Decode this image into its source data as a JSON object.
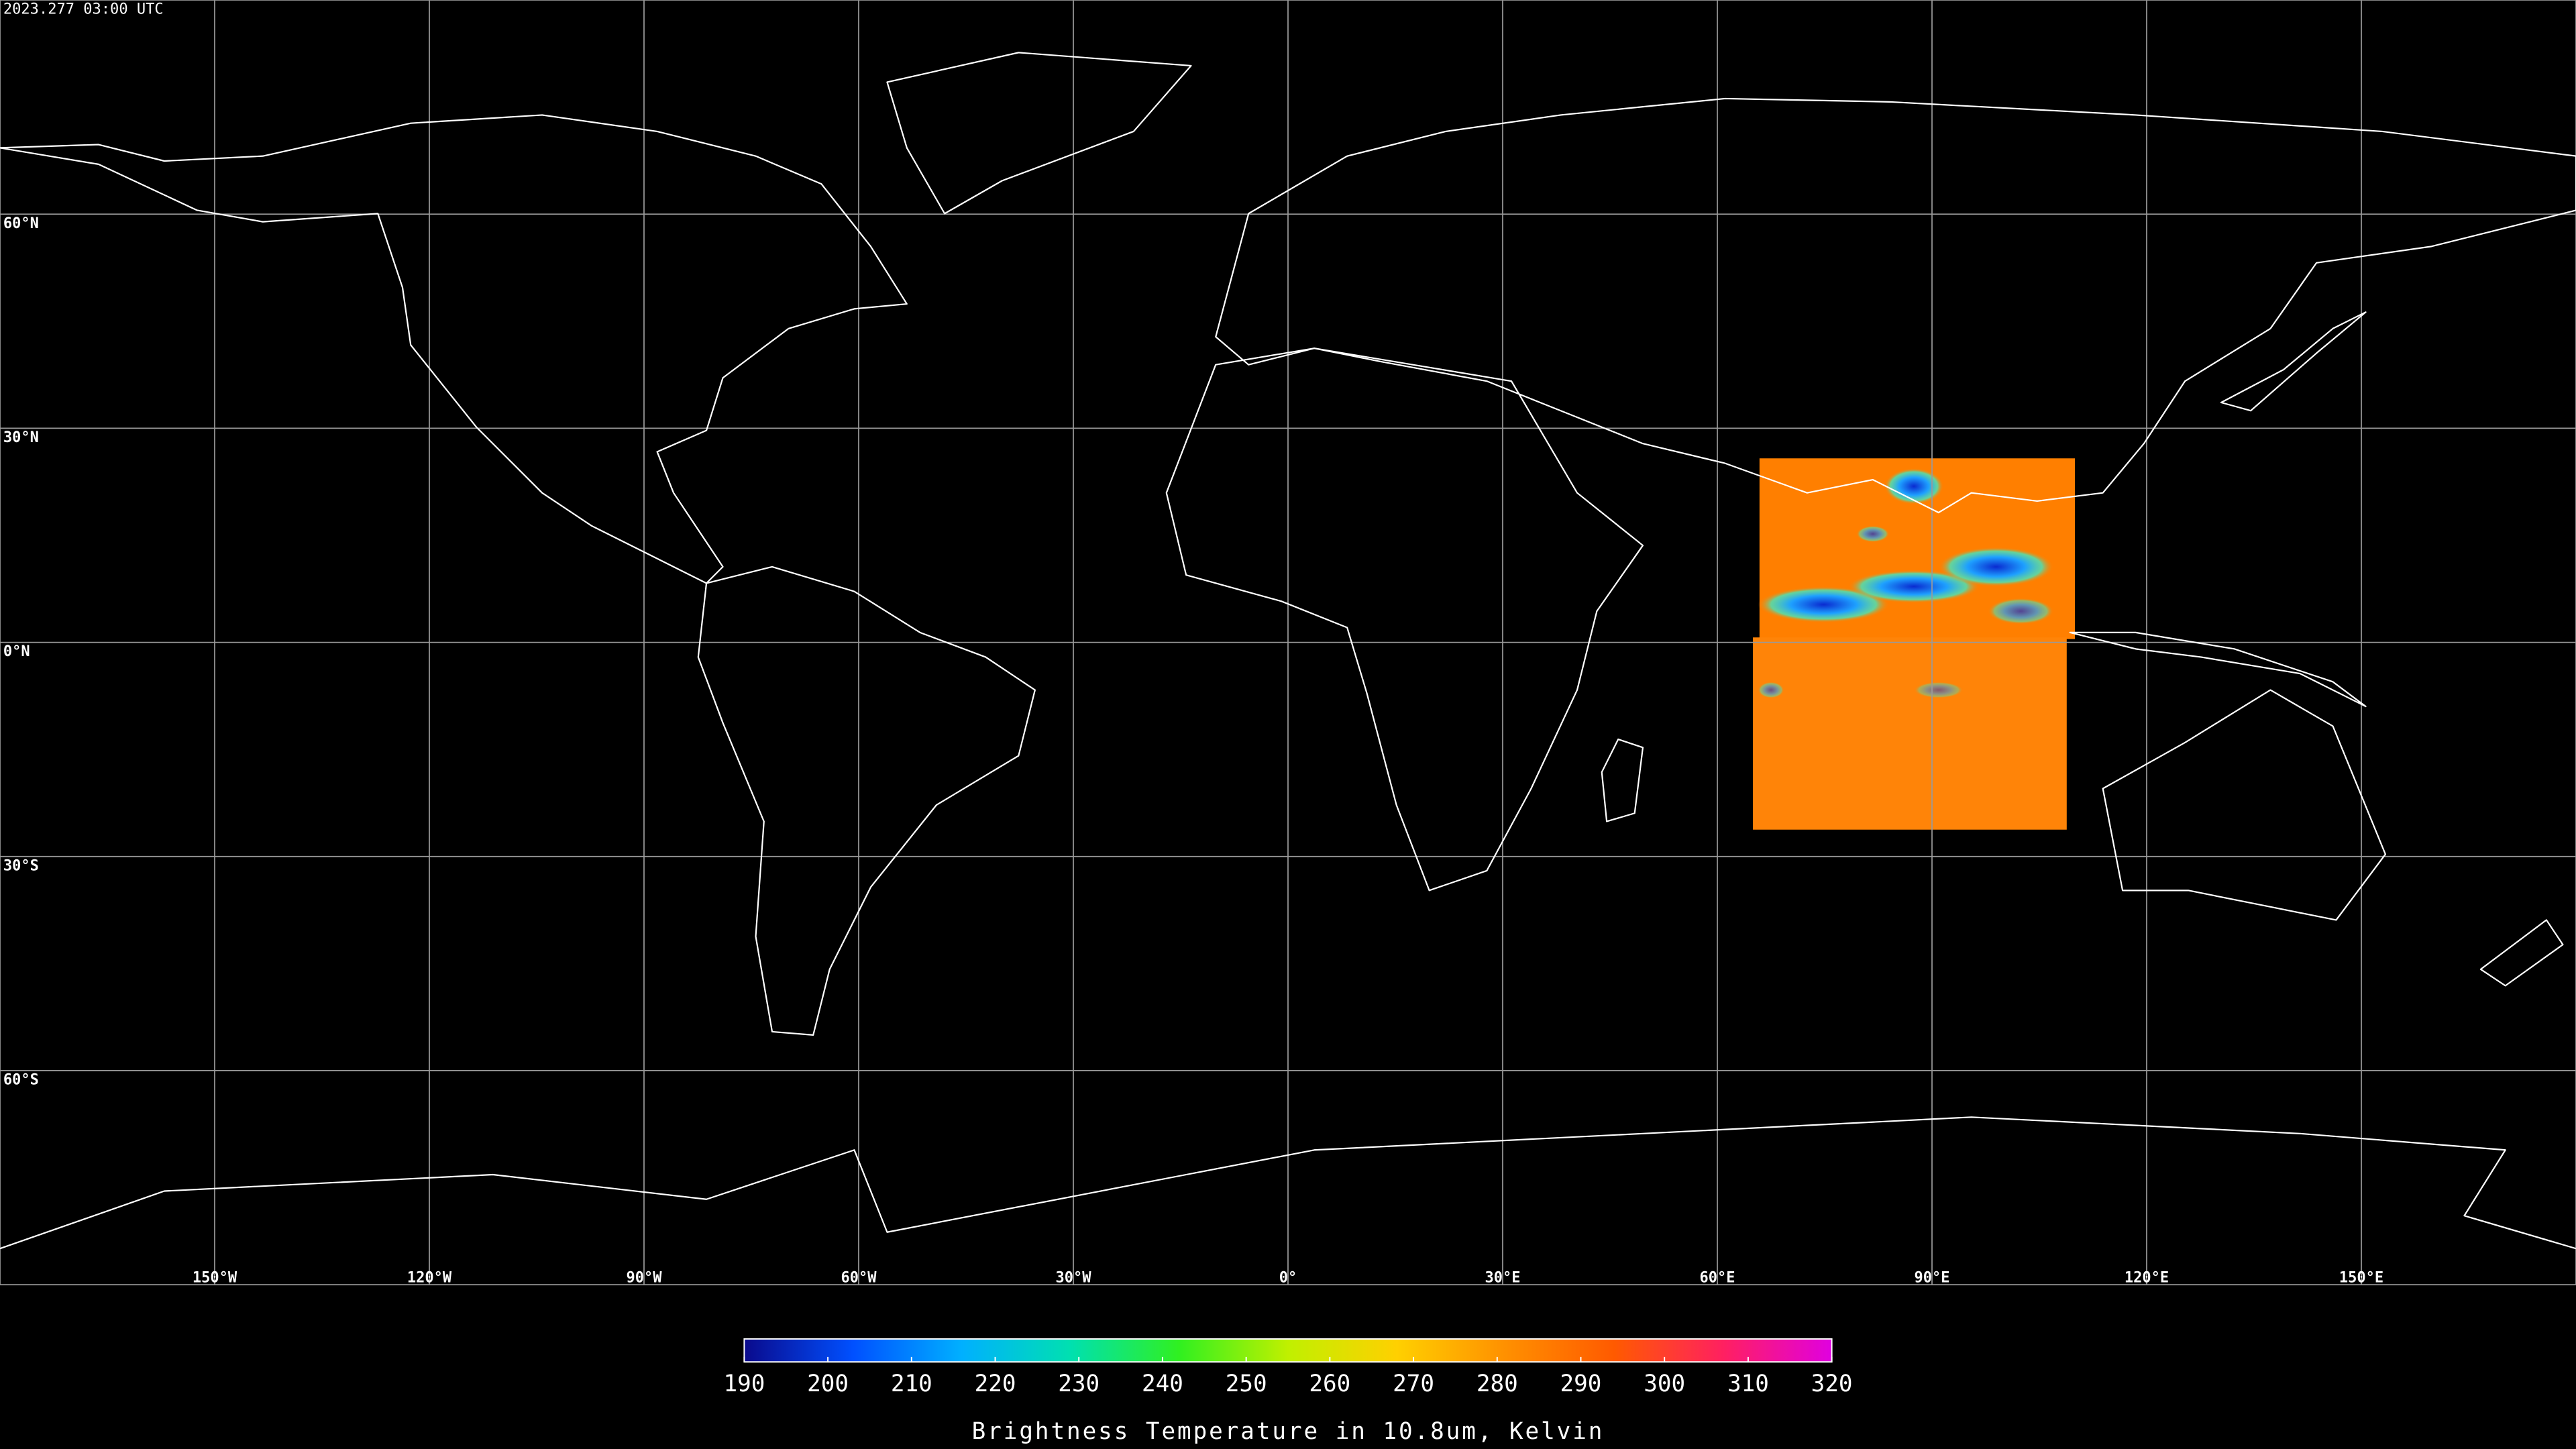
{
  "header": {
    "timestamp": "2023.277 03:00 UTC"
  },
  "map": {
    "xlim": [
      -180,
      180
    ],
    "ylim": [
      -90,
      90
    ],
    "lat_lines": [
      {
        "value": 60,
        "label": "60°N"
      },
      {
        "value": 30,
        "label": "30°N"
      },
      {
        "value": 0,
        "label": "0°N"
      },
      {
        "value": -30,
        "label": "30°S"
      },
      {
        "value": -60,
        "label": "60°S"
      }
    ],
    "lon_lines": [
      {
        "value": -150,
        "label": "150°W"
      },
      {
        "value": -120,
        "label": "120°W"
      },
      {
        "value": -90,
        "label": "90°W"
      },
      {
        "value": -60,
        "label": "60°W"
      },
      {
        "value": -30,
        "label": "30°W"
      },
      {
        "value": 0,
        "label": "0°"
      },
      {
        "value": 30,
        "label": "30°E"
      },
      {
        "value": 60,
        "label": "60°E"
      },
      {
        "value": 90,
        "label": "90°E"
      },
      {
        "value": 120,
        "label": "120°E"
      },
      {
        "value": 150,
        "label": "150°E"
      }
    ],
    "grid_color": "#9a9a9a"
  },
  "colorbar": {
    "label": "Brightness Temperature in 10.8um, Kelvin",
    "lim": [
      190,
      320
    ],
    "ticks": [
      190,
      200,
      210,
      220,
      230,
      240,
      250,
      260,
      270,
      280,
      290,
      300,
      310,
      320
    ],
    "colors": [
      "#0a0a8c",
      "#0050ff",
      "#00b0ff",
      "#00e0b0",
      "#30f020",
      "#c0f000",
      "#ffd000",
      "#ff9000",
      "#ff5a00",
      "#ff2060",
      "#e000e0"
    ]
  }
}
